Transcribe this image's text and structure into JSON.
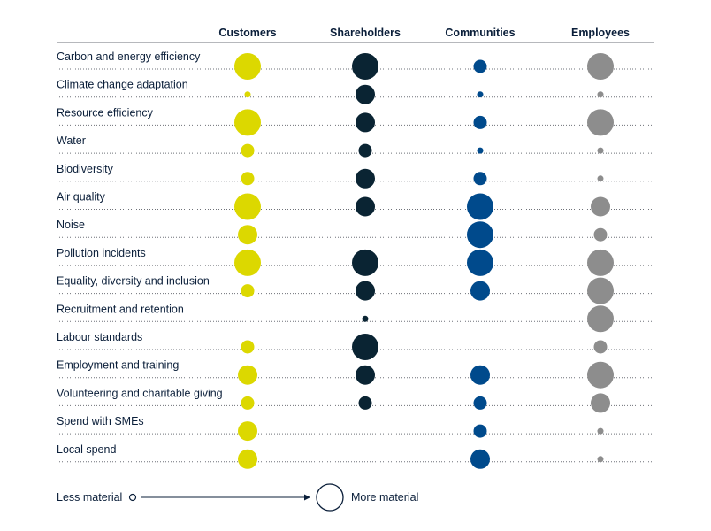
{
  "chart_data": {
    "type": "bubble-matrix",
    "columns": [
      "Customers",
      "Shareholders",
      "Communities",
      "Employees"
    ],
    "colors": {
      "Customers": "#dcd800",
      "Shareholders": "#0a2433",
      "Communities": "#004a8c",
      "Employees": "#8d8d8d",
      "text": "#0b1f3a",
      "rule": "#6e7178"
    },
    "rows": [
      {
        "label": "Carbon and energy efficiency",
        "values": [
          4,
          4,
          2,
          4
        ]
      },
      {
        "label": "Climate change adaptation",
        "values": [
          1,
          3,
          1,
          1
        ]
      },
      {
        "label": "Resource efficiency",
        "values": [
          4,
          3,
          2,
          4
        ]
      },
      {
        "label": "Water",
        "values": [
          2,
          2,
          1,
          1
        ]
      },
      {
        "label": "Biodiversity",
        "values": [
          2,
          3,
          2,
          1
        ]
      },
      {
        "label": "Air quality",
        "values": [
          4,
          3,
          4,
          3
        ]
      },
      {
        "label": "Noise",
        "values": [
          3,
          null,
          4,
          2
        ]
      },
      {
        "label": "Pollution incidents",
        "values": [
          4,
          4,
          4,
          4
        ]
      },
      {
        "label": "Equality, diversity and inclusion",
        "values": [
          2,
          3,
          3,
          4
        ]
      },
      {
        "label": "Recruitment and retention",
        "values": [
          null,
          1,
          null,
          4
        ]
      },
      {
        "label": "Labour standards",
        "values": [
          2,
          4,
          null,
          2
        ]
      },
      {
        "label": "Employment and training",
        "values": [
          3,
          3,
          3,
          4
        ]
      },
      {
        "label": "Volunteering and charitable giving",
        "values": [
          2,
          2,
          2,
          3
        ]
      },
      {
        "label": "Spend with SMEs",
        "values": [
          3,
          null,
          2,
          1
        ]
      },
      {
        "label": "Local spend",
        "values": [
          3,
          null,
          3,
          1
        ]
      }
    ],
    "scale": {
      "min": 1,
      "max": 4
    },
    "legend": {
      "less": "Less material",
      "more": "More material"
    }
  }
}
